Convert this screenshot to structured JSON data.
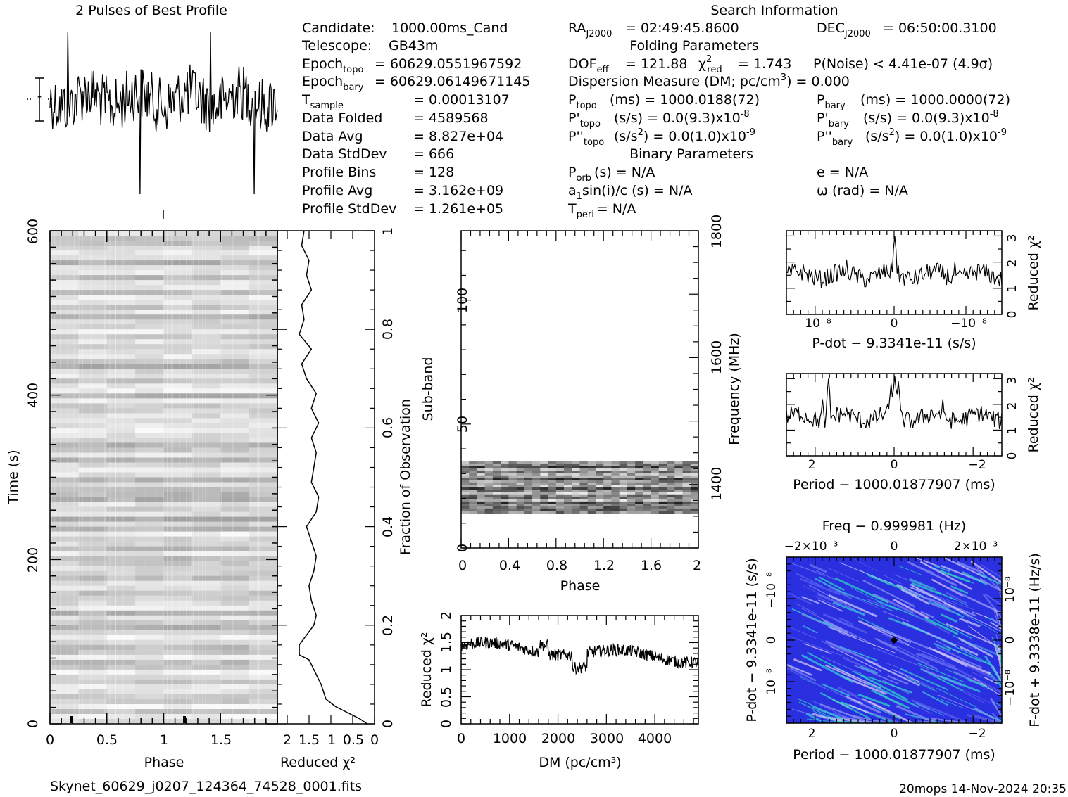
{
  "header": {
    "profile_title": "2 Pulses of Best Profile",
    "search_title": "Search Information",
    "folding_title": "Folding Parameters",
    "binary_title": "Binary Parameters"
  },
  "info_left": {
    "candidate_label": "Candidate:",
    "candidate": "1000.00ms_Cand",
    "telescope_label": "Telescope:",
    "telescope": "GB43m",
    "epoch_topo_main": "Epoch",
    "epoch_topo_sub": "topo",
    "epoch_topo": "= 60629.0551967592",
    "epoch_bary_main": "Epoch",
    "epoch_bary_sub": "bary",
    "epoch_bary": "= 60629.06149671145",
    "tsample_main": "T",
    "tsample_sub": "sample",
    "tsample": "= 0.00013107",
    "data_folded_label": "Data Folded",
    "data_folded": "= 4589568",
    "data_avg_label": "Data Avg",
    "data_avg": "= 8.827e+04",
    "data_std_label": "Data StdDev",
    "data_std": "= 666",
    "prof_bins_label": "Profile Bins",
    "prof_bins": "= 128",
    "prof_avg_label": "Profile Avg",
    "prof_avg": "= 3.162e+09",
    "prof_std_label": "Profile StdDev",
    "prof_std": "= 1.261e+05"
  },
  "info_mid": {
    "ra_main": "RA",
    "ra_sub": "J2000",
    "ra": "= 02:49:45.8600",
    "dof_main": "DOF",
    "dof_sub": "eff",
    "dof": "= 121.88",
    "chi_main": "χ",
    "chi_sup": "2",
    "chi_sub": "red",
    "chi": "= 1.743",
    "dm_text": "Dispersion Measure (DM; pc/cm",
    "dm_sup": "3",
    "dm_end": ") = 0.000",
    "ptopo_main": "P",
    "ptopo_sub": "topo",
    "ptopo": "(ms) =  1000.0188(72)",
    "pdtopo_main": "P'",
    "pdtopo_sub": "topo",
    "pdtopo": "(s/s) = 0.0(9.3)x10",
    "pdtopo_exp": "-8",
    "pddtopo_main": "P''",
    "pddtopo_sub": "topo",
    "pddtopo": "(s/s",
    "pddtopo_sq": "2",
    "pddtopo_end": ") = 0.0(1.0)x10",
    "pddtopo_exp": "-9",
    "porb_main": "P",
    "porb_sub": "orb",
    "porb": "(s) = N/A",
    "a1_text": "a",
    "a1_sub": "1",
    "a1_end": "sin(i)/c (s) = N/A",
    "tperi_main": "T",
    "tperi_sub": "peri",
    "tperi": "= N/A"
  },
  "info_right": {
    "dec_main": "DEC",
    "dec_sub": "J2000",
    "dec": "= 06:50:00.3100",
    "pnoise": "P(Noise) < 4.41e-07  (4.9σ)",
    "pbary_main": "P",
    "pbary_sub": "bary",
    "pbary": "(ms) =  1000.0000(72)",
    "pdbary_main": "P'",
    "pdbary_sub": "bary",
    "pdbary": "(s/s) = 0.0(9.3)x10",
    "pdbary_exp": "-8",
    "pddbary_main": "P''",
    "pddbary_sub": "bary",
    "pddbary": "(s/s",
    "pddbary_sq": "2",
    "pddbary_end": ") = 0.0(1.0)x10",
    "pddbary_exp": "-9",
    "e": "e = N/A",
    "omega": "ω (rad) = N/A"
  },
  "footer": {
    "filename": "Skynet_60629_j0207_124364_74528_0001.fits",
    "stamp": "20mops 14-Nov-2024 20:35"
  },
  "chart_data": [
    {
      "type": "line",
      "name": "profile",
      "title": "2 Pulses of Best Profile",
      "x": {
        "range": [
          0,
          2
        ],
        "bins": 256
      }
    },
    {
      "type": "heatmap",
      "name": "time-phase",
      "xlabel": "Phase",
      "ylabel": "Time (s)",
      "xlim": [
        0,
        2
      ],
      "ylim": [
        0,
        600
      ],
      "xticks": [
        "0",
        "0.5",
        "1",
        "1.5"
      ],
      "yticks": [
        "0",
        "200",
        "400",
        "600"
      ],
      "colormap": "grayscale"
    },
    {
      "type": "line",
      "name": "reduced-chi2-vs-time",
      "xlabel": "Reduced χ²",
      "ylabel": "Fraction of Observation",
      "xticks": [
        "2",
        "1.5",
        "1",
        "0.5",
        "0"
      ],
      "yticks": [
        "0",
        "0.2",
        "0.4",
        "0.6",
        "0.8",
        "1"
      ],
      "x_reversed": true,
      "points": [
        [
          0.15,
          0.0
        ],
        [
          0.3,
          0.01
        ],
        [
          0.5,
          0.02
        ],
        [
          0.8,
          0.035
        ],
        [
          1.0,
          0.05
        ],
        [
          1.1,
          0.08
        ],
        [
          1.25,
          0.11
        ],
        [
          1.35,
          0.13
        ],
        [
          1.55,
          0.14
        ],
        [
          1.55,
          0.16
        ],
        [
          1.4,
          0.18
        ],
        [
          1.25,
          0.2
        ],
        [
          1.2,
          0.22
        ],
        [
          1.3,
          0.25
        ],
        [
          1.35,
          0.28
        ],
        [
          1.25,
          0.31
        ],
        [
          1.2,
          0.34
        ],
        [
          1.3,
          0.37
        ],
        [
          1.4,
          0.4
        ],
        [
          1.2,
          0.43
        ],
        [
          1.15,
          0.46
        ],
        [
          1.3,
          0.49
        ],
        [
          1.25,
          0.52
        ],
        [
          1.2,
          0.55
        ],
        [
          1.3,
          0.58
        ],
        [
          1.15,
          0.61
        ],
        [
          1.3,
          0.64
        ],
        [
          1.2,
          0.67
        ],
        [
          1.4,
          0.7
        ],
        [
          1.5,
          0.73
        ],
        [
          1.3,
          0.76
        ],
        [
          1.55,
          0.79
        ],
        [
          1.45,
          0.82
        ],
        [
          1.5,
          0.85
        ],
        [
          1.3,
          0.88
        ],
        [
          1.4,
          0.91
        ],
        [
          1.35,
          0.94
        ],
        [
          1.5,
          0.97
        ],
        [
          1.45,
          1.0
        ]
      ]
    },
    {
      "type": "heatmap",
      "name": "subband-phase",
      "xlabel": "Phase",
      "ylabel": "Sub-band",
      "y2label": "Frequency (MHz)",
      "xlim": [
        0,
        2
      ],
      "ylim": [
        0,
        128
      ],
      "y2lim": [
        1300,
        1800
      ],
      "xticks": [
        "0",
        "0.4",
        "0.8",
        "1.2",
        "1.6",
        "2"
      ],
      "yticks": [
        "0",
        "50",
        "100"
      ],
      "y2ticks": [
        "1400",
        "1600",
        "1800"
      ],
      "filled_subbands": [
        14,
        35
      ],
      "colormap": "grayscale"
    },
    {
      "type": "line",
      "name": "reduced-chi2-vs-dm",
      "xlabel": "DM (pc/cm³)",
      "ylabel": "Reduced χ²",
      "xlim": [
        0,
        4900
      ],
      "ylim": [
        0,
        2
      ],
      "xticks": [
        "0",
        "1000",
        "2000",
        "3000",
        "4000"
      ],
      "yticks": [
        "0",
        "0.5",
        "1",
        "1.5",
        "2"
      ]
    },
    {
      "type": "line",
      "name": "reduced-chi2-vs-pdot",
      "xlabel": "P-dot − 9.3341e-11 (s/s)",
      "ylabel": "Reduced χ²",
      "xticks": [
        "10⁻⁸",
        "0",
        "−10⁻⁸"
      ],
      "yticks": [
        "0",
        "1",
        "2",
        "3"
      ],
      "ylim": [
        0,
        3.2
      ]
    },
    {
      "type": "line",
      "name": "reduced-chi2-vs-period",
      "xlabel": "Period − 1000.01877907 (ms)",
      "ylabel": "Reduced χ²",
      "xticks": [
        "2",
        "0",
        "−2"
      ],
      "yticks": [
        "0",
        "1",
        "2",
        "3"
      ],
      "ylim": [
        0,
        3.2
      ]
    },
    {
      "type": "heatmap",
      "name": "period-pdot",
      "title": "Freq − 0.999981 (Hz)",
      "xlabel": "Period − 1000.01877907 (ms)",
      "ylabel": "P-dot − 9.3341e-11 (s/s)",
      "y2label": "F-dot + 9.3338e-11 (Hz/s)",
      "xticks": [
        "2",
        "0",
        "−2"
      ],
      "x2ticks": [
        "−2×10⁻³",
        "0",
        "2×10⁻³"
      ],
      "yticks": [
        "10⁻⁸",
        "0",
        "−10⁻⁸"
      ],
      "y2ticks": [
        "−10⁻⁸",
        "0",
        "10⁻⁸"
      ],
      "colormap": "blue-cyan-white"
    }
  ]
}
